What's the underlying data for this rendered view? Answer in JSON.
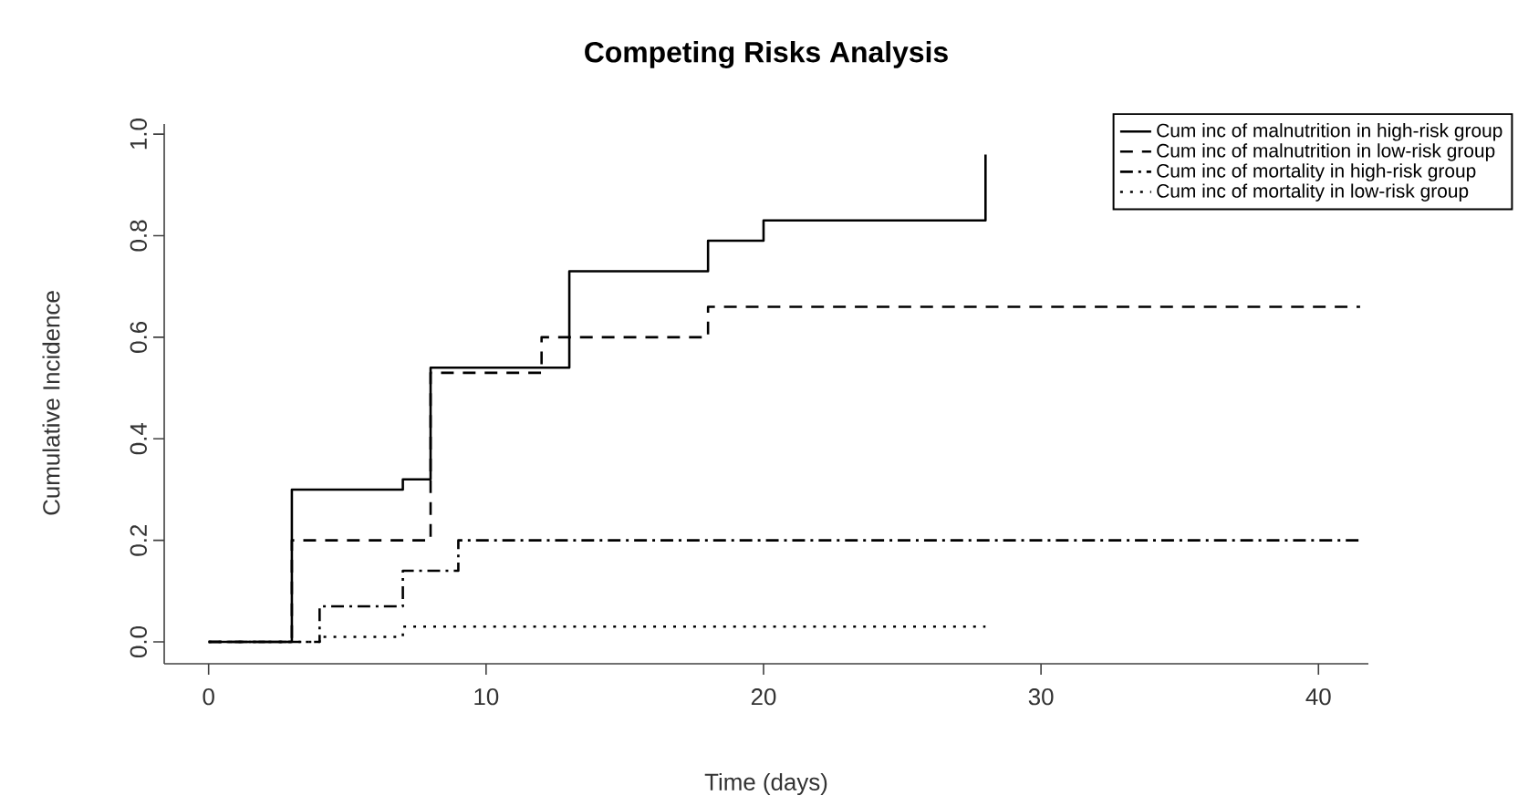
{
  "chart_data": {
    "type": "step",
    "title": "Competing Risks Analysis",
    "xlabel": "Time (days)",
    "ylabel": "Cumulative Incidence",
    "xlim": [
      -1.6,
      41.8
    ],
    "ylim": [
      -0.043,
      1.02
    ],
    "xticks": [
      0,
      10,
      20,
      30,
      40
    ],
    "yticks": [
      {
        "value": 0,
        "label": "0.0"
      },
      {
        "value": 0.2,
        "label": "0.2"
      },
      {
        "value": 0.4,
        "label": "0.4"
      },
      {
        "value": 0.6,
        "label": "0.6"
      },
      {
        "value": 0.8,
        "label": "0.8"
      },
      {
        "value": 1,
        "label": "1.0"
      }
    ],
    "legend": "top right",
    "grid": false,
    "series": [
      {
        "name": "Cum inc of malnutrition in high-risk group",
        "color": "#000000",
        "line_style": "solid",
        "x": [
          0,
          3,
          7,
          8,
          13,
          18,
          20,
          28,
          28
        ],
        "values": [
          0,
          0.3,
          0.32,
          0.54,
          0.73,
          0.79,
          0.83,
          0.83,
          0.96
        ]
      },
      {
        "name": "Cum inc of malnutrition in low-risk group",
        "color": "#000000",
        "line_style": "dashed",
        "x": [
          0,
          3,
          8,
          12,
          18,
          41.5
        ],
        "values": [
          0,
          0.2,
          0.53,
          0.6,
          0.66,
          0.66
        ]
      },
      {
        "name": "Cum inc of mortality in high-risk group",
        "color": "#000000",
        "line_style": "dashdot",
        "x": [
          0,
          4,
          7,
          9,
          41.5
        ],
        "values": [
          0,
          0.07,
          0.14,
          0.2,
          0.2
        ]
      },
      {
        "name": "Cum inc of mortality in low-risk group",
        "color": "#000000",
        "line_style": "dotted",
        "x": [
          0,
          4,
          7,
          28
        ],
        "values": [
          0,
          0.01,
          0.03,
          0.03
        ]
      }
    ]
  }
}
